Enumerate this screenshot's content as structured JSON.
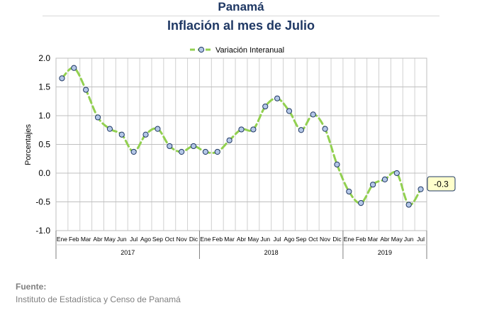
{
  "header": {
    "country": "Panamá",
    "title": "Inflación al mes de Julio"
  },
  "source": {
    "label": "Fuente:",
    "text": "Instituto de Estadística y Censo de Panamá"
  },
  "colors": {
    "line": "#92d050",
    "marker_fill": "#b4c7e7",
    "marker_stroke": "#1f3864",
    "grid": "#bfbfbf",
    "callout_fill": "#ffffcc",
    "callout_stroke": "#1f3864"
  },
  "chart_data": {
    "type": "line",
    "ylabel": "Porcentajes",
    "ylim": [
      -1.0,
      2.0
    ],
    "yticks": [
      2.0,
      1.5,
      1.0,
      0.5,
      0.0,
      -0.5,
      -1.0
    ],
    "ytick_labels": [
      "2.0",
      "1.5",
      "1.0",
      "0.5",
      "0.0",
      "-0.5",
      "-1.0"
    ],
    "grid": true,
    "legend_position": "top-center",
    "categories": [
      "Ene",
      "Feb",
      "Mar",
      "Abr",
      "May",
      "Jun",
      "Jul",
      "Ago",
      "Sep",
      "Oct",
      "Nov",
      "Dic",
      "Ene",
      "Feb",
      "Mar",
      "Abr",
      "May",
      "Jun",
      "Jul",
      "Ago",
      "Sep",
      "Oct",
      "Nov",
      "Dic",
      "Ene",
      "Feb",
      "Mar",
      "Abr",
      "May",
      "Jun",
      "Jul"
    ],
    "year_groups": [
      {
        "label": "2017",
        "count": 12
      },
      {
        "label": "2018",
        "count": 12
      },
      {
        "label": "2019",
        "count": 7
      }
    ],
    "series": [
      {
        "name": "Variación Interanual",
        "values": [
          1.65,
          1.83,
          1.45,
          0.97,
          0.77,
          0.67,
          0.37,
          0.67,
          0.77,
          0.47,
          0.37,
          0.47,
          0.37,
          0.37,
          0.57,
          0.76,
          0.76,
          1.16,
          1.3,
          1.08,
          0.75,
          1.02,
          0.77,
          0.15,
          -0.32,
          -0.52,
          -0.2,
          -0.11,
          0.0,
          -0.55,
          -0.28
        ]
      }
    ],
    "annotation": {
      "label": "-0.3",
      "index": 30
    }
  }
}
